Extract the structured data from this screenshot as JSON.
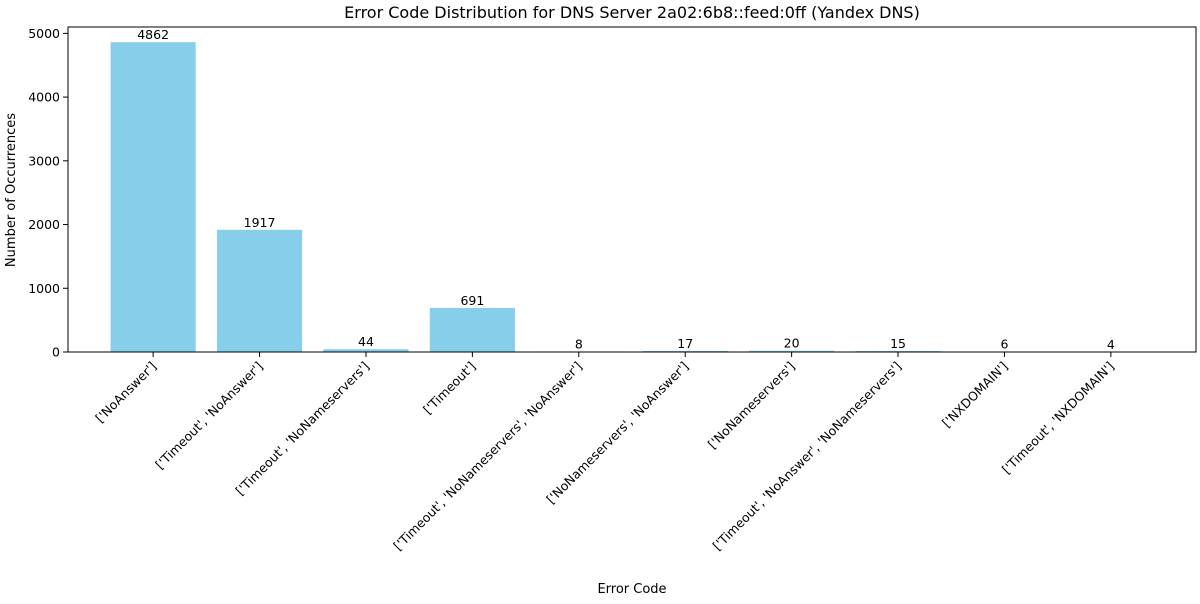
{
  "chart_data": {
    "type": "bar",
    "title": "Error Code Distribution for DNS Server 2a02:6b8::feed:0ff (Yandex DNS)",
    "xlabel": "Error Code",
    "ylabel": "Number of Occurrences",
    "categories": [
      "['NoAnswer']",
      "['Timeout', 'NoAnswer']",
      "['Timeout', 'NoNameservers']",
      "['Timeout']",
      "['Timeout', 'NoNameservers', 'NoAnswer']",
      "['NoNameservers', 'NoAnswer']",
      "['NoNameservers']",
      "['Timeout', 'NoAnswer', 'NoNameservers']",
      "['NXDOMAIN']",
      "['Timeout', 'NXDOMAIN']"
    ],
    "values": [
      4862,
      1917,
      44,
      691,
      8,
      17,
      20,
      15,
      6,
      4
    ],
    "ylim": [
      0,
      5100
    ],
    "yticks": [
      0,
      1000,
      2000,
      3000,
      4000,
      5000
    ],
    "bar_color": "#87ceeb",
    "grid": false,
    "legend": "none"
  }
}
